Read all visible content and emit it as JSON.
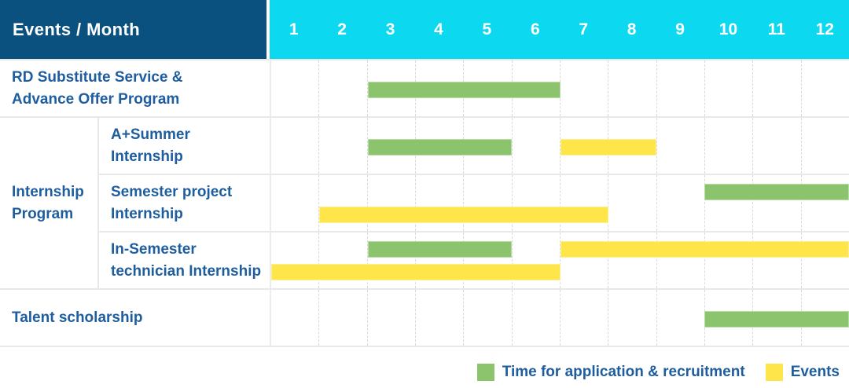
{
  "header": {
    "title": "Events / Month",
    "months": [
      "1",
      "2",
      "3",
      "4",
      "5",
      "6",
      "7",
      "8",
      "9",
      "10",
      "11",
      "12"
    ]
  },
  "colors": {
    "header_bg": "#0b5180",
    "month_header_bg": "#0cd9ef",
    "label_text": "#1e5d9e",
    "green": "#8bc46d",
    "yellow": "#fde54a",
    "grid_line": "#e8e8e8",
    "dashed_line": "#d9d9d9"
  },
  "chart_data": {
    "type": "gantt",
    "x_axis": {
      "label": "Month",
      "ticks": [
        "1",
        "2",
        "3",
        "4",
        "5",
        "6",
        "7",
        "8",
        "9",
        "10",
        "11",
        "12"
      ],
      "range": [
        1,
        12
      ]
    },
    "grid": "vertical dashed month separators",
    "legend_position": "bottom-right",
    "series_legend": [
      {
        "name": "Time for application & recruitment",
        "color_key": "green"
      },
      {
        "name": "Events",
        "color_key": "yellow"
      }
    ],
    "rows": [
      {
        "group": null,
        "label": "RD Substitute Service &\nAdvance Offer Program",
        "bars": [
          {
            "series": "Time for application & recruitment",
            "color": "green",
            "start_month": 3,
            "end_month": 6,
            "level": "single"
          }
        ]
      },
      {
        "group": "Internship\nProgram",
        "label": "A+Summer\nInternship",
        "bars": [
          {
            "series": "Time for application & recruitment",
            "color": "green",
            "start_month": 3,
            "end_month": 5,
            "level": "single"
          },
          {
            "series": "Events",
            "color": "yellow",
            "start_month": 7,
            "end_month": 8,
            "level": "single"
          }
        ]
      },
      {
        "group": "Internship\nProgram",
        "label": "Semester project\nInternship",
        "bars": [
          {
            "series": "Time for application & recruitment",
            "color": "green",
            "start_month": 10,
            "end_month": 12,
            "level": "upper"
          },
          {
            "series": "Events",
            "color": "yellow",
            "start_month": 2,
            "end_month": 7,
            "level": "lower"
          }
        ]
      },
      {
        "group": "Internship\nProgram",
        "label": "In-Semester\ntechnician Internship",
        "bars": [
          {
            "series": "Time for application & recruitment",
            "color": "green",
            "start_month": 3,
            "end_month": 5,
            "level": "upper"
          },
          {
            "series": "Events",
            "color": "yellow",
            "start_month": 7,
            "end_month": 12,
            "level": "upper"
          },
          {
            "series": "Events",
            "color": "yellow",
            "start_month": 1,
            "end_month": 6,
            "level": "lower"
          }
        ]
      },
      {
        "group": null,
        "label": "Talent scholarship",
        "bars": [
          {
            "series": "Time for application & recruitment",
            "color": "green",
            "start_month": 10,
            "end_month": 12,
            "level": "single"
          }
        ]
      }
    ]
  },
  "legend": [
    {
      "label": "Time for application & recruitment",
      "color": "green"
    },
    {
      "label": "Events",
      "color": "yellow"
    }
  ]
}
